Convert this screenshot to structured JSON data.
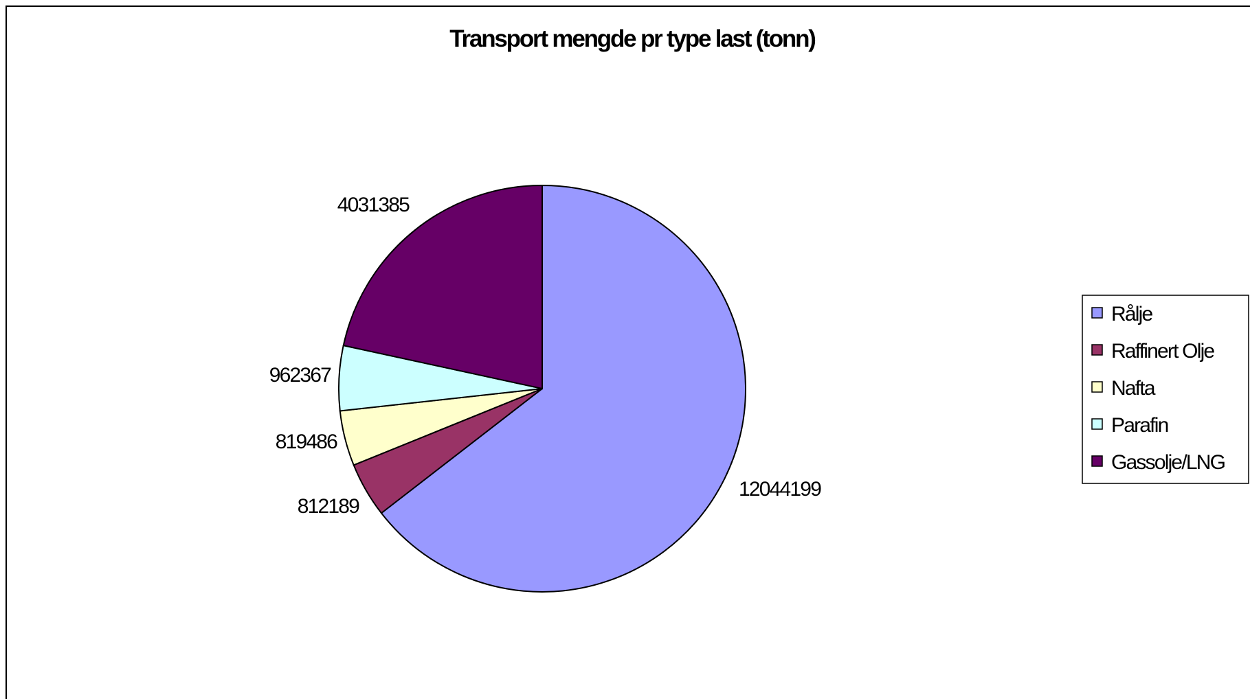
{
  "chart_data": {
    "type": "pie",
    "title": "Transport mengde pr type last (tonn)",
    "categories": [
      "Rålje",
      "Raffinert Olje",
      "Nafta",
      "Parafin",
      "Gassolje/LNG"
    ],
    "values": [
      12044199,
      812189,
      819486,
      962367,
      4031385
    ],
    "data_labels": [
      "12044199",
      "812189",
      "819486",
      "962367",
      "4031385"
    ],
    "colors": [
      "#9999ff",
      "#993366",
      "#ffffcc",
      "#ccffff",
      "#660066"
    ],
    "start_angle_deg": 0,
    "direction": "clockwise",
    "legend_position": "right"
  }
}
